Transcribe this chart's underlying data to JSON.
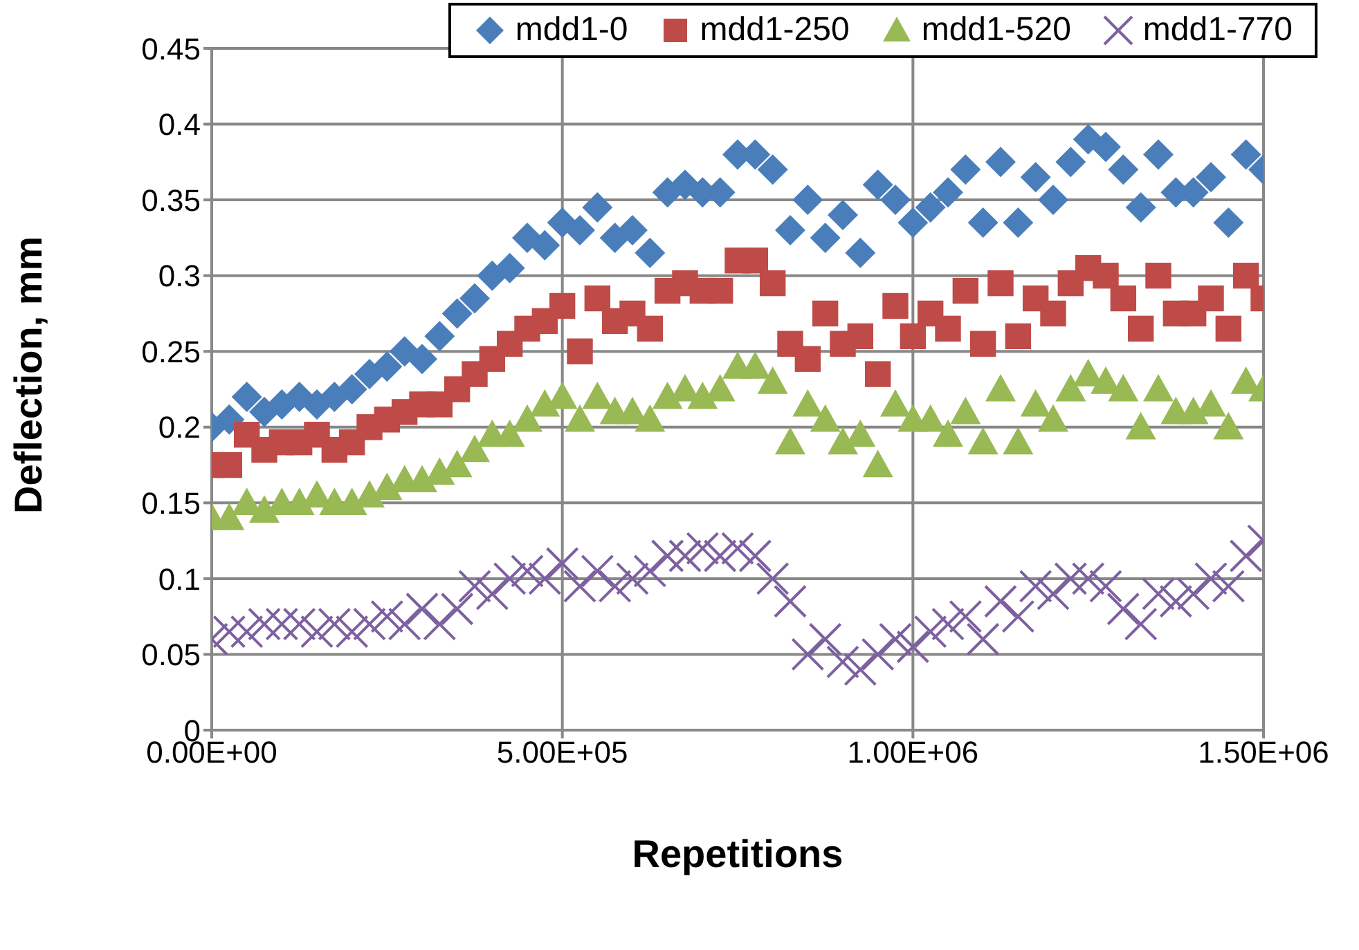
{
  "chart_data": {
    "type": "scatter",
    "xlabel": "Repetitions",
    "ylabel": "Deflection, mm",
    "x": [
      0,
      25000,
      50000,
      75000,
      100000,
      125000,
      150000,
      175000,
      200000,
      225000,
      250000,
      275000,
      300000,
      325000,
      350000,
      375000,
      400000,
      425000,
      450000,
      475000,
      500000,
      525000,
      550000,
      575000,
      600000,
      625000,
      650000,
      675000,
      700000,
      725000,
      750000,
      775000,
      800000,
      825000,
      850000,
      875000,
      900000,
      925000,
      950000,
      975000,
      1000000,
      1025000,
      1050000,
      1075000,
      1100000,
      1125000,
      1150000,
      1175000,
      1200000,
      1225000,
      1250000,
      1275000,
      1300000,
      1325000,
      1350000,
      1375000,
      1400000,
      1425000,
      1450000,
      1475000,
      1500000
    ],
    "series": [
      {
        "name": "mdd1-0",
        "color": "#4a7ebb",
        "marker": "diamond",
        "values": [
          0.2,
          0.205,
          0.22,
          0.21,
          0.215,
          0.22,
          0.215,
          0.22,
          0.225,
          0.235,
          0.24,
          0.25,
          0.245,
          0.26,
          0.275,
          0.285,
          0.3,
          0.305,
          0.325,
          0.32,
          0.335,
          0.33,
          0.345,
          0.325,
          0.33,
          0.315,
          0.355,
          0.36,
          0.355,
          0.355,
          0.38,
          0.38,
          0.37,
          0.33,
          0.35,
          0.325,
          0.34,
          0.315,
          0.36,
          0.35,
          0.335,
          0.345,
          0.355,
          0.37,
          0.335,
          0.375,
          0.335,
          0.365,
          0.35,
          0.375,
          0.39,
          0.385,
          0.37,
          0.345,
          0.38,
          0.355,
          0.355,
          0.365,
          0.335,
          0.38,
          0.37
        ]
      },
      {
        "name": "mdd1-250",
        "color": "#be4b48",
        "marker": "square",
        "values": [
          0.175,
          0.175,
          0.195,
          0.185,
          0.19,
          0.19,
          0.195,
          0.185,
          0.19,
          0.2,
          0.205,
          0.21,
          0.215,
          0.215,
          0.225,
          0.235,
          0.245,
          0.255,
          0.265,
          0.27,
          0.28,
          0.25,
          0.285,
          0.27,
          0.275,
          0.265,
          0.29,
          0.295,
          0.29,
          0.29,
          0.31,
          0.31,
          0.295,
          0.255,
          0.245,
          0.275,
          0.255,
          0.26,
          0.235,
          0.28,
          0.26,
          0.275,
          0.265,
          0.29,
          0.255,
          0.295,
          0.26,
          0.285,
          0.275,
          0.295,
          0.305,
          0.3,
          0.285,
          0.265,
          0.3,
          0.275,
          0.275,
          0.285,
          0.265,
          0.3,
          0.285
        ]
      },
      {
        "name": "mdd1-520",
        "color": "#98b954",
        "marker": "triangle",
        "values": [
          0.14,
          0.14,
          0.15,
          0.145,
          0.15,
          0.15,
          0.155,
          0.15,
          0.15,
          0.155,
          0.16,
          0.165,
          0.165,
          0.17,
          0.175,
          0.185,
          0.195,
          0.195,
          0.205,
          0.215,
          0.22,
          0.205,
          0.22,
          0.21,
          0.21,
          0.205,
          0.22,
          0.225,
          0.22,
          0.225,
          0.24,
          0.24,
          0.23,
          0.19,
          0.215,
          0.205,
          0.19,
          0.195,
          0.175,
          0.215,
          0.205,
          0.205,
          0.195,
          0.21,
          0.19,
          0.225,
          0.19,
          0.215,
          0.205,
          0.225,
          0.235,
          0.23,
          0.225,
          0.2,
          0.225,
          0.21,
          0.21,
          0.215,
          0.2,
          0.23,
          0.225
        ]
      },
      {
        "name": "mdd1-770",
        "color": "#7d60a0",
        "marker": "cross",
        "values": [
          0.06,
          0.065,
          0.065,
          0.07,
          0.07,
          0.07,
          0.065,
          0.07,
          0.065,
          0.07,
          0.075,
          0.07,
          0.08,
          0.07,
          0.08,
          0.095,
          0.09,
          0.1,
          0.105,
          0.1,
          0.11,
          0.095,
          0.105,
          0.095,
          0.1,
          0.105,
          0.115,
          0.115,
          0.12,
          0.115,
          0.12,
          0.115,
          0.1,
          0.085,
          0.05,
          0.06,
          0.045,
          0.04,
          0.05,
          0.06,
          0.055,
          0.065,
          0.07,
          0.075,
          0.06,
          0.085,
          0.075,
          0.095,
          0.09,
          0.1,
          0.1,
          0.095,
          0.08,
          0.07,
          0.09,
          0.085,
          0.09,
          0.1,
          0.095,
          0.115,
          0.125
        ]
      }
    ],
    "xlim": [
      0,
      1500000
    ],
    "xticks": [
      {
        "value": 0,
        "label": "0.00E+00"
      },
      {
        "value": 500000,
        "label": "5.00E+05"
      },
      {
        "value": 1000000,
        "label": "1.00E+06"
      },
      {
        "value": 1500000,
        "label": "1.50E+06"
      }
    ],
    "ylim": [
      0,
      0.45
    ],
    "yticks": [
      0,
      0.05,
      0.1,
      0.15,
      0.2,
      0.25,
      0.3,
      0.35,
      0.4,
      0.45
    ],
    "grid": true,
    "legend": "top right"
  }
}
